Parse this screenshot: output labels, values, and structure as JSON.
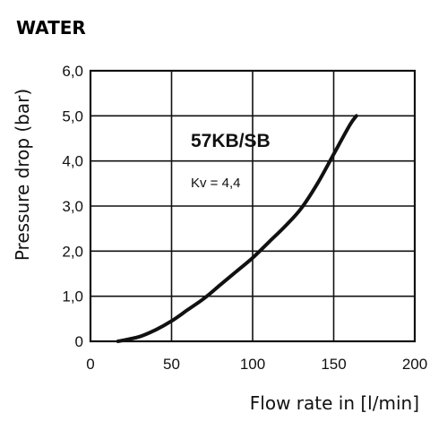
{
  "chart_data": {
    "type": "line",
    "title": "WATER",
    "xlabel": "Flow rate in [l/min]",
    "ylabel": "Pressure drop (bar)",
    "xlim": [
      0,
      200
    ],
    "ylim": [
      0,
      6
    ],
    "x_ticks": [
      "0",
      "50",
      "100",
      "150",
      "200"
    ],
    "y_ticks": [
      "0",
      "1,0",
      "2,0",
      "3,0",
      "4,0",
      "5,0",
      "6,0"
    ],
    "grid": true,
    "annotations": [
      "57KB/SB",
      "Kv = 4,4"
    ],
    "series": [
      {
        "name": "57KB/SB",
        "x": [
          17,
          30,
          40,
          50,
          60,
          70,
          80,
          90,
          100,
          110,
          120,
          130,
          140,
          150,
          160,
          164
        ],
        "y": [
          0,
          0.1,
          0.25,
          0.45,
          0.7,
          0.95,
          1.25,
          1.55,
          1.85,
          2.2,
          2.55,
          2.95,
          3.5,
          4.15,
          4.8,
          5.0
        ]
      }
    ],
    "colors": {
      "line": "#111111",
      "grid": "#111111"
    }
  }
}
